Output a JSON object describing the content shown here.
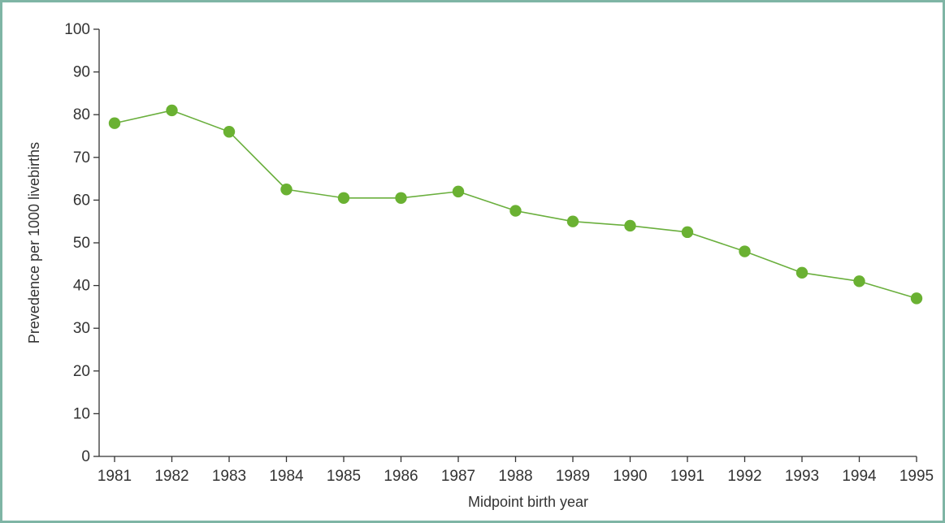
{
  "chart_data": {
    "type": "line",
    "title": "",
    "xlabel": "Midpoint birth year",
    "ylabel": "Prevedence per 1000 livebirths",
    "x": [
      "1981",
      "1982",
      "1983",
      "1984",
      "1985",
      "1986",
      "1987",
      "1988",
      "1989",
      "1990",
      "1991",
      "1992",
      "1993",
      "1994",
      "1995"
    ],
    "series": [
      {
        "values": [
          78,
          81,
          76,
          62.5,
          60.5,
          60.5,
          62,
          57.5,
          55,
          54,
          52.5,
          48,
          43,
          41,
          37
        ]
      }
    ],
    "ylim": [
      0,
      100
    ],
    "yticks": [
      0,
      10,
      20,
      30,
      40,
      50,
      60,
      70,
      80,
      90,
      100
    ],
    "grid": false,
    "legend": "none",
    "colors": {
      "series": "#6aaf3d",
      "marker": "#6ab132",
      "axis": "#333333",
      "frame": "#7fb5a5"
    }
  }
}
